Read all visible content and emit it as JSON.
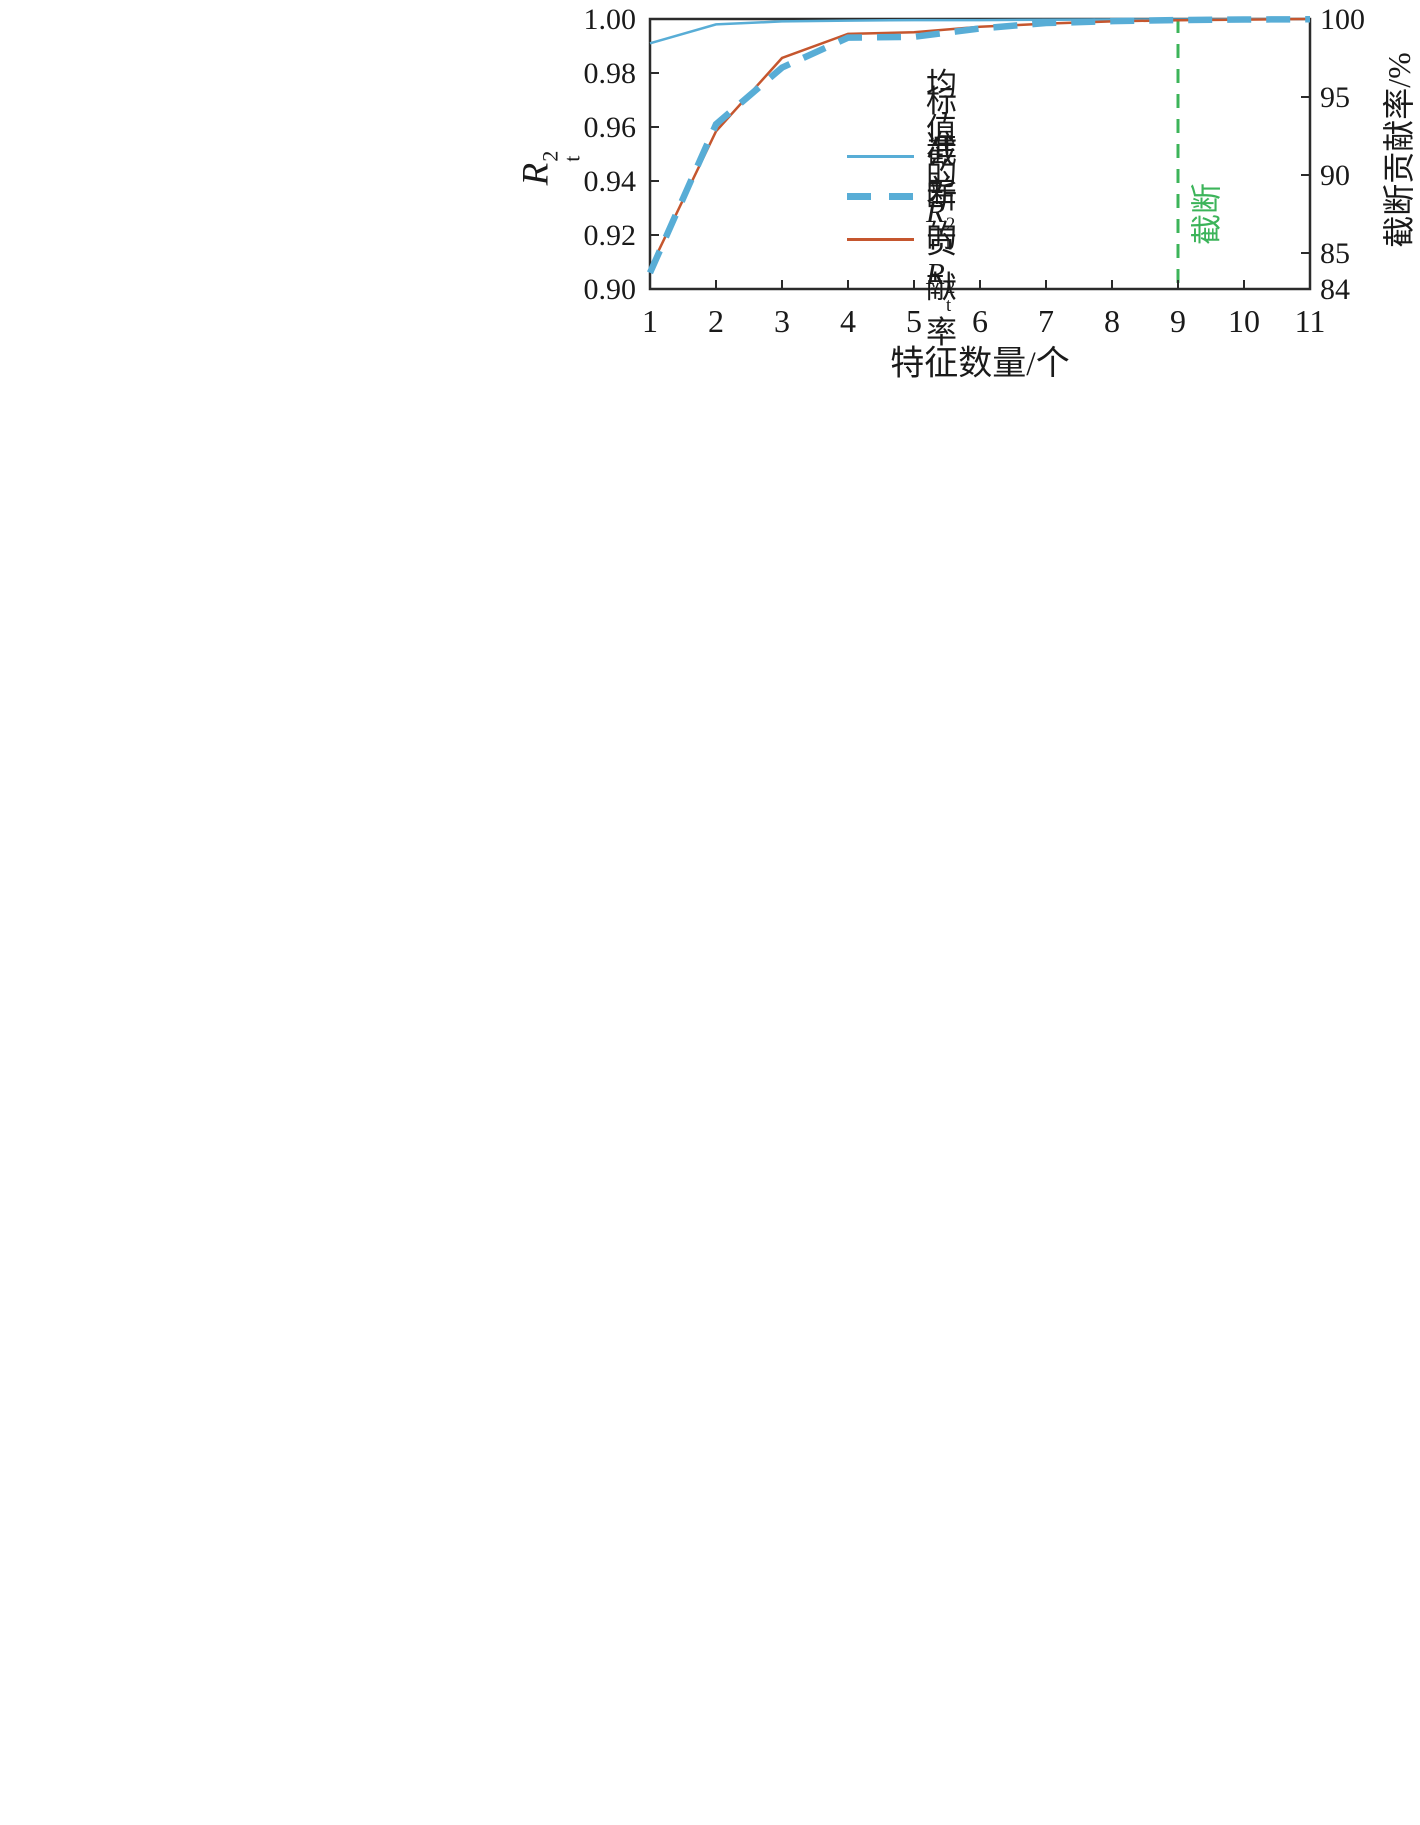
{
  "colors": {
    "blue": "#58ADD6",
    "orange": "#C5562E",
    "green": "#3CB45A",
    "axis": "#2B2B2B",
    "text": "#1A1A1A"
  },
  "chart_data": {
    "type": "line",
    "x": [
      1,
      2,
      3,
      4,
      5,
      6,
      7,
      8,
      9,
      10,
      11
    ],
    "series": [
      {
        "name": "均值的Rt2",
        "axis": "left",
        "line": "solid-thin",
        "color": "blue",
        "values": [
          0.991,
          0.998,
          0.9991,
          0.9994,
          0.9996,
          0.9996,
          0.9997,
          0.9998,
          0.9998,
          0.9999,
          0.9999
        ]
      },
      {
        "name": "标准差的Rt2",
        "axis": "left",
        "line": "dashed-thick",
        "color": "blue",
        "values": [
          0.906,
          0.961,
          0.982,
          0.9931,
          0.9934,
          0.9965,
          0.9985,
          0.9992,
          0.9996,
          0.9998,
          0.9999
        ]
      },
      {
        "name": "截断贡献率",
        "axis": "right",
        "line": "solid-thin",
        "color": "orange",
        "values": [
          84.0,
          92.8,
          97.5,
          99.05,
          99.15,
          99.5,
          99.7,
          99.85,
          99.92,
          99.96,
          100.0
        ]
      }
    ],
    "title": "",
    "xlabel": "特征数量/个",
    "ylabel_left": "Rt2",
    "ylabel_right": "截断贡献率/%",
    "xlim": [
      1,
      11
    ],
    "ylim_left": [
      0.9,
      1.0
    ],
    "x_ticks": [
      1,
      2,
      3,
      4,
      5,
      6,
      7,
      8,
      9,
      10,
      11
    ],
    "left_tick_values": [
      1.0,
      0.98,
      0.96,
      0.94,
      0.92,
      0.9
    ],
    "left_tick_labels": [
      "1.00",
      "0.98",
      "0.96",
      "0.94",
      "0.92",
      "0.90"
    ],
    "right_tick_values": [
      100,
      95,
      90,
      85
    ],
    "right_corner_label": "84",
    "cutoff_x": 9,
    "cutoff_label": "截断",
    "grid": false,
    "legend_position": "inside-center-right"
  },
  "labels": {
    "xlabel": "特征数量/个",
    "ylabel_left_var": "R",
    "ylabel_left_sub": "t",
    "ylabel_left_sup": "2",
    "ylabel_right": "截断贡献率/%",
    "cutoff": "截断"
  },
  "legend": {
    "items": [
      {
        "prefix": "均值的",
        "var": "R",
        "sub": "t",
        "sup": "2"
      },
      {
        "prefix": "标准差的",
        "var": "R",
        "sub": "t",
        "sup": "2"
      },
      {
        "prefix": "截断贡献率",
        "var": "",
        "sub": "",
        "sup": ""
      }
    ]
  }
}
